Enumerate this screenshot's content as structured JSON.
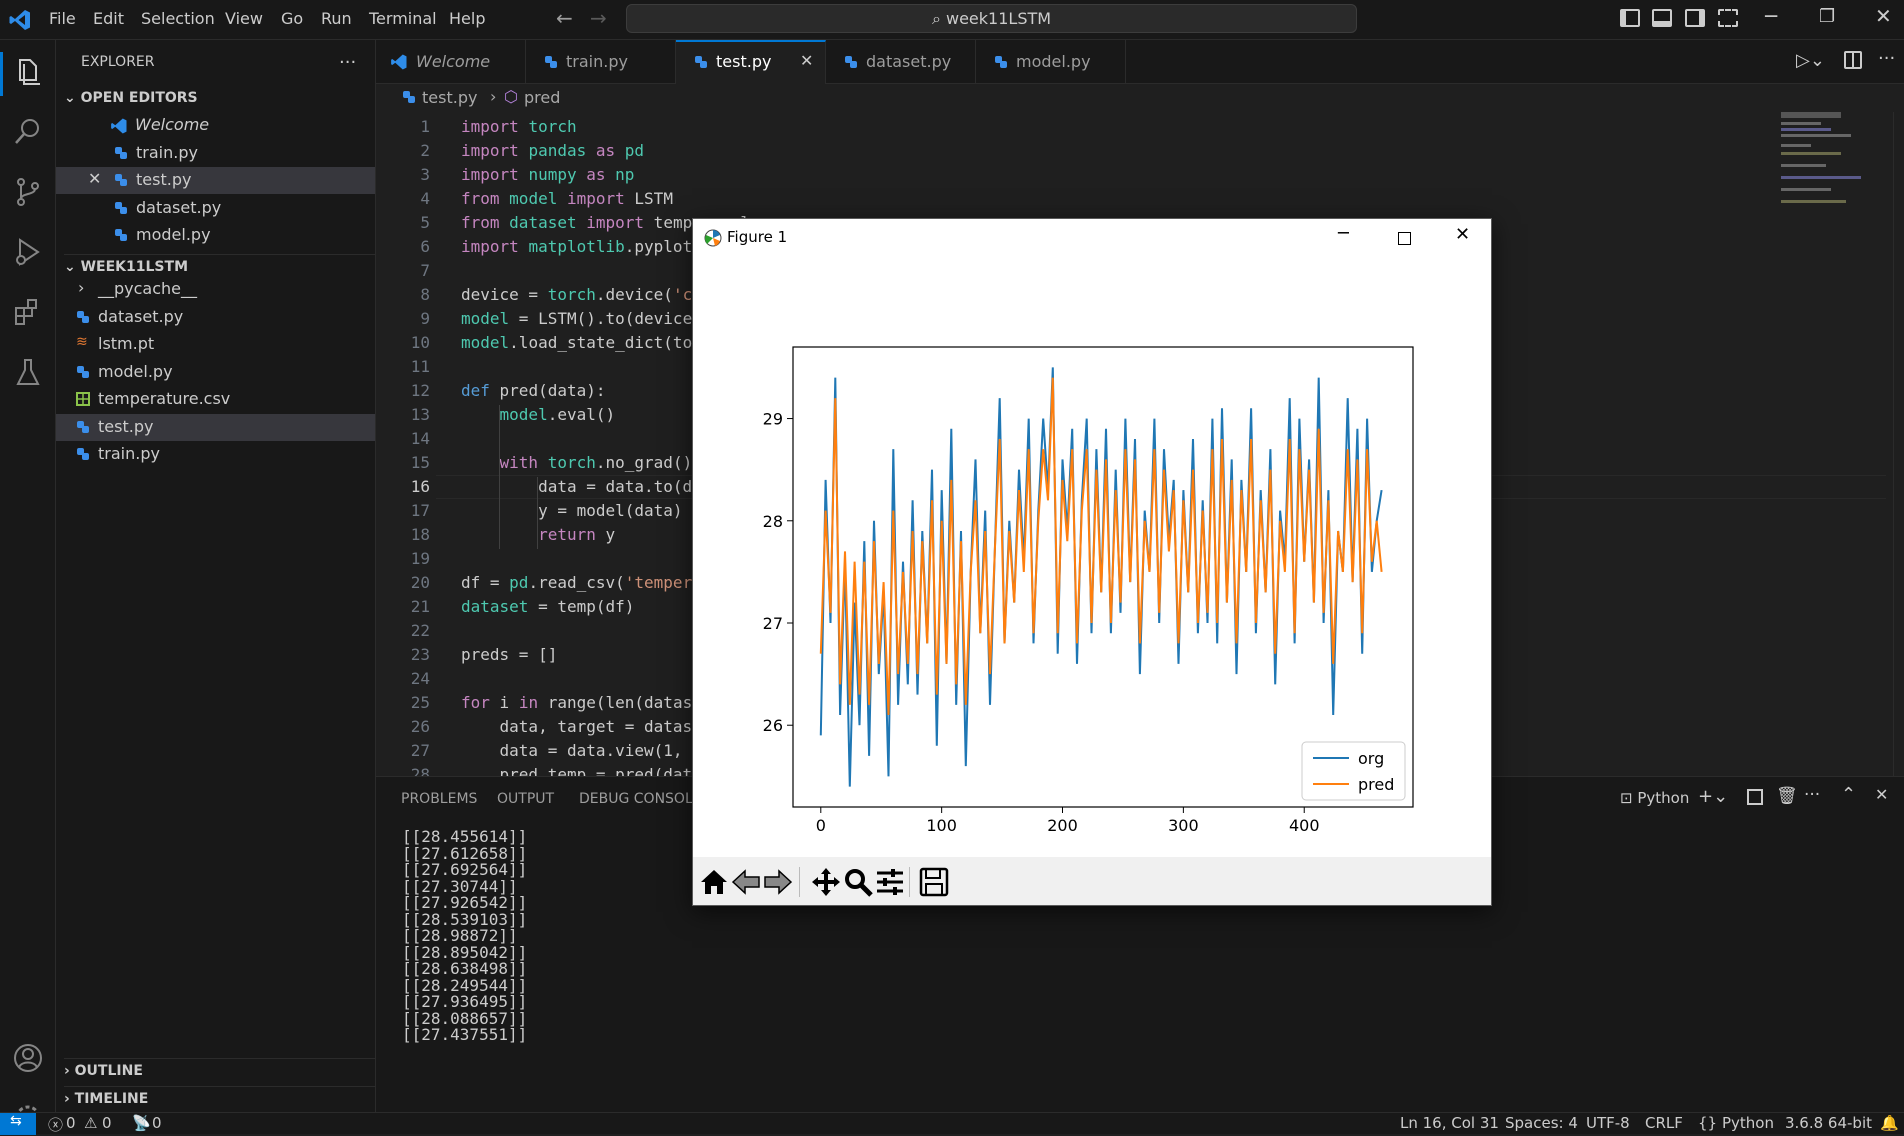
{
  "menu": [
    "File",
    "Edit",
    "Selection",
    "View",
    "Go",
    "Run",
    "Terminal",
    "Help"
  ],
  "command_center": "week11LSTM",
  "sidebar": {
    "title": "EXPLORER",
    "more": "···",
    "open_editors": {
      "header": "OPEN EDITORS",
      "items": [
        "Welcome",
        "train.py",
        "test.py",
        "dataset.py",
        "model.py"
      ]
    },
    "folder": {
      "header": "WEEK11LSTM",
      "items": [
        "__pycache__",
        "dataset.py",
        "lstm.pt",
        "model.py",
        "temperature.csv",
        "test.py",
        "train.py"
      ]
    },
    "outline": "OUTLINE",
    "timeline": "TIMELINE"
  },
  "tabs": [
    "Welcome",
    "train.py",
    "test.py",
    "dataset.py",
    "model.py"
  ],
  "breadcrumb": {
    "file": "test.py",
    "symbol": "pred"
  },
  "code_lines": [
    "import torch",
    "import pandas as pd",
    "import numpy as np",
    "from model import LSTM",
    "from dataset import temp, scaler",
    "import matplotlib.pyplot",
    "",
    "device = torch.device('c",
    "model = LSTM().to(device",
    "model.load_state_dict(to",
    "",
    "def pred(data):",
    "    model.eval()",
    "",
    "    with torch.no_grad()",
    "        data = data.to(d",
    "        y = model(data)",
    "        return y",
    "",
    "df = pd.read_csv('temper",
    "dataset = temp(df)",
    "",
    "preds = []",
    "",
    "for i in range(len(datas",
    "    data, target = datas",
    "    data = data.view(1, ",
    "    pred_temp = pred(dat"
  ],
  "panel": {
    "tabs": [
      "PROBLEMS",
      "OUTPUT",
      "DEBUG CONSOLE"
    ],
    "terminal_label": "Python",
    "lines": [
      "[[28.455614]]",
      "[[27.612658]]",
      "[[27.692564]]",
      "[[27.30744]]",
      "[[27.926542]]",
      "[[28.539103]]",
      "[[28.98872]]",
      "[[28.895042]]",
      "[[28.638498]]",
      "[[28.249544]]",
      "[[27.936495]]",
      "[[28.088657]]",
      "[[27.437551]]"
    ]
  },
  "statusbar": {
    "errors": "0",
    "warnings": "0",
    "ports": "0",
    "position": "Ln 16, Col 31",
    "spaces": "Spaces: 4",
    "encoding": "UTF-8",
    "eol": "CRLF",
    "language": "Python",
    "interpreter": "3.6.8 64-bit"
  },
  "figure": {
    "title": "Figure 1"
  },
  "colors": {
    "accent": "#0078d4",
    "org": "#1f77b4",
    "pred": "#ff7f0e"
  },
  "chart_data": {
    "type": "line",
    "title": "",
    "xlabel": "",
    "ylabel": "",
    "xlim": [
      -23,
      490
    ],
    "ylim": [
      25.2,
      29.7
    ],
    "xticks": [
      0,
      100,
      200,
      300,
      400
    ],
    "yticks": [
      26,
      27,
      28,
      29
    ],
    "legend": "lower-right",
    "series": [
      {
        "name": "org",
        "color": "#1f77b4",
        "x": [
          0,
          4,
          8,
          12,
          16,
          20,
          24,
          28,
          32,
          36,
          40,
          44,
          48,
          52,
          56,
          60,
          64,
          68,
          72,
          76,
          80,
          84,
          88,
          92,
          96,
          100,
          104,
          108,
          112,
          116,
          120,
          124,
          128,
          132,
          136,
          140,
          144,
          148,
          152,
          156,
          160,
          164,
          168,
          172,
          176,
          180,
          184,
          188,
          192,
          196,
          200,
          204,
          208,
          212,
          216,
          220,
          224,
          228,
          232,
          236,
          240,
          244,
          248,
          252,
          256,
          260,
          264,
          268,
          272,
          276,
          280,
          284,
          288,
          292,
          296,
          300,
          304,
          308,
          312,
          316,
          320,
          324,
          328,
          332,
          336,
          340,
          344,
          348,
          352,
          356,
          360,
          364,
          368,
          372,
          376,
          380,
          384,
          388,
          392,
          396,
          400,
          404,
          408,
          412,
          416,
          420,
          424,
          428,
          432,
          436,
          440,
          444,
          448,
          452,
          456,
          460,
          464
        ],
        "y": [
          25.9,
          28.4,
          27.0,
          29.4,
          26.1,
          27.6,
          25.4,
          27.2,
          26.0,
          27.8,
          25.7,
          28.0,
          26.5,
          27.3,
          25.5,
          28.7,
          26.2,
          27.6,
          26.4,
          28.2,
          26.3,
          27.9,
          26.8,
          28.5,
          25.8,
          28.3,
          26.6,
          28.9,
          26.2,
          27.9,
          25.6,
          27.5,
          28.6,
          26.9,
          28.1,
          26.2,
          27.7,
          29.2,
          26.8,
          28.0,
          27.2,
          28.5,
          27.6,
          29.0,
          26.8,
          28.1,
          29.0,
          28.3,
          29.5,
          26.7,
          28.6,
          27.9,
          28.9,
          26.6,
          28.2,
          29.0,
          26.9,
          28.7,
          27.3,
          28.9,
          26.9,
          28.5,
          27.1,
          29.0,
          27.4,
          28.8,
          26.5,
          28.1,
          27.5,
          29.0,
          27.0,
          28.7,
          27.8,
          28.4,
          26.6,
          28.3,
          27.3,
          28.8,
          26.9,
          28.2,
          27.0,
          29.0,
          26.8,
          29.1,
          27.2,
          28.6,
          26.5,
          28.4,
          27.5,
          29.1,
          26.9,
          28.3,
          27.3,
          28.7,
          26.4,
          28.1,
          27.6,
          29.2,
          26.8,
          29.0,
          27.6,
          28.6,
          27.2,
          29.4,
          27.0,
          28.3,
          26.1,
          27.9,
          27.5,
          29.2,
          27.4,
          28.9,
          26.7,
          29.0,
          27.5,
          28.0,
          28.3
        ]
      },
      {
        "name": "pred",
        "color": "#ff7f0e",
        "x": [
          0,
          4,
          8,
          12,
          16,
          20,
          24,
          28,
          32,
          36,
          40,
          44,
          48,
          52,
          56,
          60,
          64,
          68,
          72,
          76,
          80,
          84,
          88,
          92,
          96,
          100,
          104,
          108,
          112,
          116,
          120,
          124,
          128,
          132,
          136,
          140,
          144,
          148,
          152,
          156,
          160,
          164,
          168,
          172,
          176,
          180,
          184,
          188,
          192,
          196,
          200,
          204,
          208,
          212,
          216,
          220,
          224,
          228,
          232,
          236,
          240,
          244,
          248,
          252,
          256,
          260,
          264,
          268,
          272,
          276,
          280,
          284,
          288,
          292,
          296,
          300,
          304,
          308,
          312,
          316,
          320,
          324,
          328,
          332,
          336,
          340,
          344,
          348,
          352,
          356,
          360,
          364,
          368,
          372,
          376,
          380,
          384,
          388,
          392,
          396,
          400,
          404,
          408,
          412,
          416,
          420,
          424,
          428,
          432,
          436,
          440,
          444,
          448,
          452,
          456,
          460,
          464
        ],
        "y": [
          26.7,
          28.1,
          27.1,
          29.2,
          26.4,
          27.7,
          26.2,
          27.6,
          26.3,
          27.6,
          26.2,
          27.8,
          26.6,
          27.4,
          26.1,
          28.1,
          26.5,
          27.5,
          26.6,
          27.9,
          26.5,
          27.8,
          26.8,
          28.2,
          26.3,
          28.0,
          26.6,
          28.4,
          26.4,
          27.8,
          26.2,
          27.5,
          28.2,
          26.9,
          27.9,
          26.5,
          27.7,
          28.8,
          26.8,
          27.9,
          27.2,
          28.3,
          27.5,
          28.7,
          26.9,
          28.0,
          28.7,
          28.2,
          29.4,
          26.9,
          28.4,
          27.8,
          28.7,
          26.8,
          28.1,
          28.7,
          27.0,
          28.5,
          27.3,
          28.6,
          27.0,
          28.3,
          27.2,
          28.7,
          27.4,
          28.6,
          26.8,
          28.0,
          27.5,
          28.7,
          27.1,
          28.5,
          27.7,
          28.3,
          26.8,
          28.2,
          27.3,
          28.5,
          27.0,
          28.1,
          27.1,
          28.7,
          27.0,
          28.8,
          27.2,
          28.4,
          26.8,
          28.3,
          27.5,
          28.8,
          27.0,
          28.2,
          27.3,
          28.5,
          26.7,
          28.0,
          27.5,
          28.8,
          26.9,
          28.7,
          27.6,
          28.5,
          27.2,
          28.9,
          27.1,
          28.2,
          26.6,
          27.9,
          27.5,
          28.7,
          27.4,
          28.6,
          26.9,
          28.7,
          27.6,
          28.0,
          27.5
        ]
      }
    ]
  }
}
